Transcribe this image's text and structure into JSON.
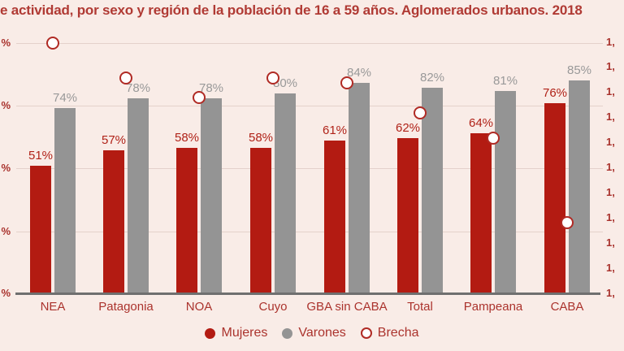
{
  "title": "e actividad, por sexo y región de la población de 16 a 59 años. Aglomerados urbanos. 2018",
  "colors": {
    "background": "#f9ece7",
    "bar_red": "#b31b12",
    "bar_gray": "#949494",
    "value_label_red": "#b02218",
    "value_label_gray": "#999999",
    "title_text": "#b03a34",
    "category_text": "#ab332d",
    "axis_text": "#a8312c",
    "gridline": "#e4d1cb",
    "baseline": "#6f6f6f",
    "circle_stroke": "#b02a24",
    "circle_fill": "#ffffff"
  },
  "chart_data": {
    "type": "bar",
    "title": "e actividad, por sexo y región de la población de 16 a 59 años. Aglomerados urbanos. 2018",
    "categories": [
      "NEA",
      "Patagonia",
      "NOA",
      "Cuyo",
      "GBA sin CABA",
      "Total",
      "Pampeana",
      "CABA"
    ],
    "series": [
      {
        "name": "Mujeres",
        "type": "bar",
        "color": "#b31b12",
        "values": [
          51,
          57,
          58,
          58,
          61,
          62,
          64,
          76
        ],
        "labels": [
          "51%",
          "57%",
          "58%",
          "58%",
          "61%",
          "62%",
          "64%",
          "76%"
        ]
      },
      {
        "name": "Varones",
        "type": "bar",
        "color": "#949494",
        "values": [
          74,
          78,
          78,
          80,
          84,
          82,
          81,
          85
        ],
        "labels": [
          "74%",
          "78%",
          "78%",
          "80%",
          "84%",
          "82%",
          "81%",
          "85%"
        ]
      },
      {
        "name": "Brecha",
        "type": "scatter",
        "marker": "open-circle",
        "axis": "right",
        "values": [
          1.5,
          1.43,
          1.39,
          1.43,
          1.42,
          1.36,
          1.31,
          1.14
        ]
      }
    ],
    "left_axis": {
      "range": [
        0,
        100
      ],
      "gridline_values": [
        100,
        75,
        50,
        25,
        0
      ],
      "tick_labels_visible": [
        "%",
        "%",
        "%",
        "%",
        "%"
      ],
      "note": "numeric part of tick labels cropped off left edge"
    },
    "right_axis": {
      "range": [
        1.0,
        1.5
      ],
      "tick_labels_visible": [
        "1,",
        "1,",
        "1,",
        "1,",
        "1,",
        "1,",
        "1,",
        "1,",
        "1,",
        "1,",
        "1,"
      ],
      "note": "decimal part of tick labels cropped off right edge"
    },
    "legend": {
      "position": "bottom",
      "entries": [
        {
          "label": "Mujeres",
          "marker": "filled",
          "color": "#b31b12"
        },
        {
          "label": "Varones",
          "marker": "filled",
          "color": "#949494"
        },
        {
          "label": "Brecha",
          "marker": "open",
          "color": "#b02a24"
        }
      ]
    },
    "grid": true
  }
}
